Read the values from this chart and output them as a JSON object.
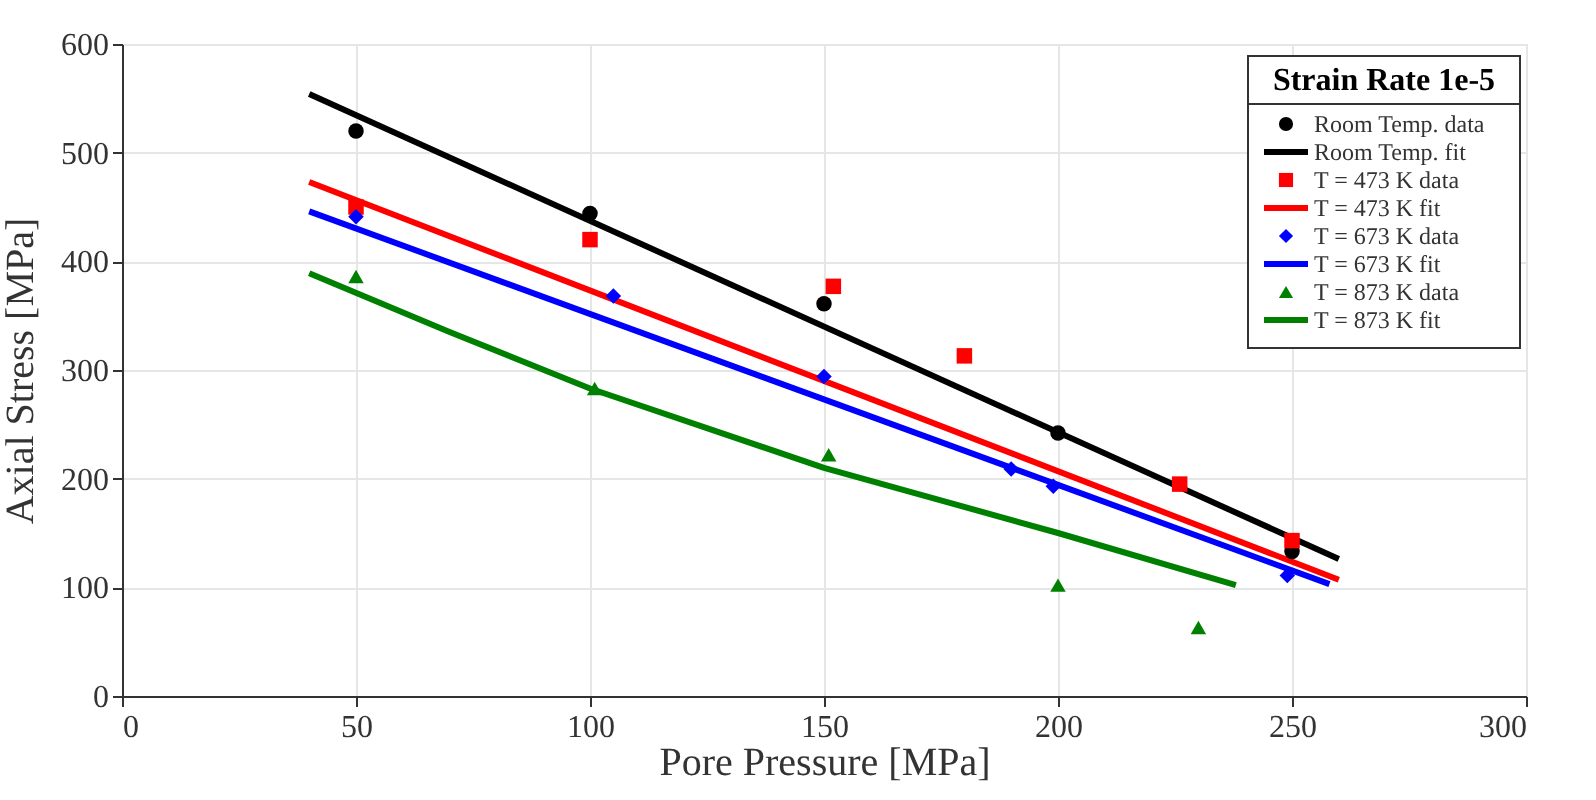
{
  "chart_data": {
    "type": "scatter",
    "xlabel": "Pore Pressure [MPa]",
    "ylabel": "Axial Stress [MPa]",
    "legend_title": "Strain Rate 1e-5",
    "xlim": [
      0,
      300
    ],
    "ylim": [
      0,
      600
    ],
    "xticks": [
      0,
      50,
      100,
      150,
      200,
      250,
      300
    ],
    "yticks": [
      0,
      100,
      200,
      300,
      400,
      500,
      600
    ],
    "grid": true,
    "legend": "top right",
    "series": [
      {
        "name": "Room Temp. data",
        "marker": "circle",
        "color": "#000000",
        "x": [
          50,
          100,
          150,
          200,
          250
        ],
        "values": [
          520,
          444,
          361,
          242,
          133
        ]
      },
      {
        "name": "Room Temp. fit",
        "type": "line",
        "color": "#000000",
        "x": [
          40,
          260
        ],
        "values": [
          554,
          126
        ]
      },
      {
        "name": "T = 473 K data",
        "marker": "square",
        "color": "#ff0000",
        "x": [
          50,
          100,
          152,
          180,
          226,
          250
        ],
        "values": [
          450,
          420,
          377,
          313,
          195,
          143
        ]
      },
      {
        "name": "T = 473 K fit",
        "type": "line",
        "color": "#ff0000",
        "x": [
          40,
          260
        ],
        "values": [
          473,
          107
        ]
      },
      {
        "name": "T = 673 K data",
        "marker": "diamond",
        "color": "#0000ff",
        "x": [
          50,
          105,
          150,
          190,
          199,
          249
        ],
        "values": [
          441,
          368,
          294,
          209,
          193,
          111
        ]
      },
      {
        "name": "T = 673 K fit",
        "type": "line",
        "color": "#0000ff",
        "x": [
          40,
          258
        ],
        "values": [
          446,
          103
        ]
      },
      {
        "name": "T = 873 K data",
        "marker": "triangle",
        "color": "#008000",
        "x": [
          50,
          101,
          151,
          200,
          230
        ],
        "values": [
          386,
          283,
          222,
          102,
          63
        ]
      },
      {
        "name": "T = 873 K fit",
        "type": "line",
        "color": "#008000",
        "x": [
          40,
          70,
          100,
          150,
          200,
          238
        ],
        "values": [
          389,
          335,
          283,
          210,
          150,
          102
        ]
      }
    ]
  }
}
